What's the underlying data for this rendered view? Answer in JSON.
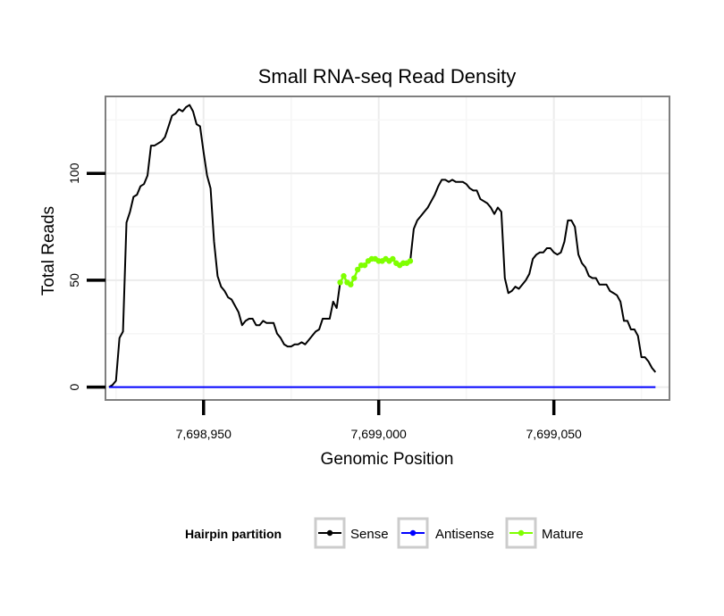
{
  "chart_data": {
    "type": "line",
    "title": "Small RNA-seq Read Density",
    "xlabel": "Genomic Position",
    "ylabel": "Total Reads",
    "xlim": [
      7698922,
      7699083
    ],
    "ylim": [
      -6,
      136
    ],
    "x_ticks": [
      7698950,
      7699000,
      7699050
    ],
    "x_tick_labels": [
      "7,698,950",
      "7,699,000",
      "7,699,050"
    ],
    "y_ticks": [
      0,
      50,
      100
    ],
    "y_tick_labels": [
      "0",
      "50",
      "100"
    ],
    "grid": true,
    "legend": {
      "title": "Hairpin partition",
      "placement": "bottom",
      "entries": [
        {
          "label": "Sense",
          "color": "#000000"
        },
        {
          "label": "Antisense",
          "color": "#0000ff"
        },
        {
          "label": "Mature",
          "color": "#7fff00"
        }
      ]
    },
    "series": [
      {
        "name": "Sense",
        "color": "#000000",
        "points": [
          [
            7698923,
            0
          ],
          [
            7698924,
            1
          ],
          [
            7698925,
            3
          ],
          [
            7698926,
            23
          ],
          [
            7698927,
            26
          ],
          [
            7698928,
            77
          ],
          [
            7698929,
            82
          ],
          [
            7698930,
            89
          ],
          [
            7698931,
            90
          ],
          [
            7698932,
            94
          ],
          [
            7698933,
            95
          ],
          [
            7698934,
            99
          ],
          [
            7698935,
            113
          ],
          [
            7698936,
            113
          ],
          [
            7698937,
            114
          ],
          [
            7698938,
            115
          ],
          [
            7698939,
            117
          ],
          [
            7698940,
            122
          ],
          [
            7698941,
            127
          ],
          [
            7698942,
            128
          ],
          [
            7698943,
            130
          ],
          [
            7698944,
            129
          ],
          [
            7698945,
            131
          ],
          [
            7698946,
            132
          ],
          [
            7698947,
            129
          ],
          [
            7698948,
            123
          ],
          [
            7698949,
            122
          ],
          [
            7698950,
            110
          ],
          [
            7698951,
            99
          ],
          [
            7698952,
            93
          ],
          [
            7698953,
            68
          ],
          [
            7698954,
            52
          ],
          [
            7698955,
            47
          ],
          [
            7698956,
            45
          ],
          [
            7698957,
            42
          ],
          [
            7698958,
            41
          ],
          [
            7698959,
            38
          ],
          [
            7698960,
            35
          ],
          [
            7698961,
            29
          ],
          [
            7698962,
            31
          ],
          [
            7698963,
            32
          ],
          [
            7698964,
            32
          ],
          [
            7698965,
            29
          ],
          [
            7698966,
            29
          ],
          [
            7698967,
            31
          ],
          [
            7698968,
            30
          ],
          [
            7698969,
            30
          ],
          [
            7698970,
            30
          ],
          [
            7698971,
            25
          ],
          [
            7698972,
            23
          ],
          [
            7698973,
            20
          ],
          [
            7698974,
            19
          ],
          [
            7698975,
            19
          ],
          [
            7698976,
            20
          ],
          [
            7698977,
            20
          ],
          [
            7698978,
            21
          ],
          [
            7698979,
            20
          ],
          [
            7698980,
            22
          ],
          [
            7698981,
            24
          ],
          [
            7698982,
            26
          ],
          [
            7698983,
            27
          ],
          [
            7698984,
            32
          ],
          [
            7698985,
            32
          ],
          [
            7698986,
            32
          ],
          [
            7698987,
            40
          ],
          [
            7698988,
            37
          ],
          [
            7698989,
            49
          ],
          [
            7699009,
            59
          ],
          [
            7699010,
            74
          ],
          [
            7699011,
            78
          ],
          [
            7699012,
            80
          ],
          [
            7699013,
            82
          ],
          [
            7699014,
            84
          ],
          [
            7699015,
            87
          ],
          [
            7699016,
            90
          ],
          [
            7699017,
            94
          ],
          [
            7699018,
            97
          ],
          [
            7699019,
            97
          ],
          [
            7699020,
            96
          ],
          [
            7699021,
            97
          ],
          [
            7699022,
            96
          ],
          [
            7699023,
            96
          ],
          [
            7699024,
            96
          ],
          [
            7699025,
            95
          ],
          [
            7699026,
            93
          ],
          [
            7699027,
            92
          ],
          [
            7699028,
            92
          ],
          [
            7699029,
            88
          ],
          [
            7699030,
            87
          ],
          [
            7699031,
            86
          ],
          [
            7699032,
            84
          ],
          [
            7699033,
            81
          ],
          [
            7699034,
            84
          ],
          [
            7699035,
            82
          ],
          [
            7699036,
            51
          ],
          [
            7699037,
            44
          ],
          [
            7699038,
            45
          ],
          [
            7699039,
            47
          ],
          [
            7699040,
            46
          ],
          [
            7699041,
            48
          ],
          [
            7699042,
            50
          ],
          [
            7699043,
            53
          ],
          [
            7699044,
            60
          ],
          [
            7699045,
            62
          ],
          [
            7699046,
            63
          ],
          [
            7699047,
            63
          ],
          [
            7699048,
            65
          ],
          [
            7699049,
            65
          ],
          [
            7699050,
            63
          ],
          [
            7699051,
            62
          ],
          [
            7699052,
            63
          ],
          [
            7699053,
            68
          ],
          [
            7699054,
            78
          ],
          [
            7699055,
            78
          ],
          [
            7699056,
            75
          ],
          [
            7699057,
            62
          ],
          [
            7699058,
            58
          ],
          [
            7699059,
            56
          ],
          [
            7699060,
            52
          ],
          [
            7699061,
            51
          ],
          [
            7699062,
            51
          ],
          [
            7699063,
            48
          ],
          [
            7699064,
            48
          ],
          [
            7699065,
            48
          ],
          [
            7699066,
            45
          ],
          [
            7699067,
            44
          ],
          [
            7699068,
            43
          ],
          [
            7699069,
            40
          ],
          [
            7699070,
            31
          ],
          [
            7699071,
            31
          ],
          [
            7699072,
            27
          ],
          [
            7699073,
            27
          ],
          [
            7699074,
            24
          ],
          [
            7699075,
            14
          ],
          [
            7699076,
            14
          ],
          [
            7699077,
            12
          ],
          [
            7699078,
            9
          ],
          [
            7699079,
            7
          ]
        ]
      },
      {
        "name": "Antisense",
        "color": "#0000ff",
        "points": [
          [
            7698923,
            0
          ],
          [
            7699079,
            0
          ]
        ]
      },
      {
        "name": "Mature",
        "color": "#7fff00",
        "points": [
          [
            7698989,
            49
          ],
          [
            7698990,
            52
          ],
          [
            7698991,
            49
          ],
          [
            7698992,
            48
          ],
          [
            7698993,
            51
          ],
          [
            7698994,
            55
          ],
          [
            7698995,
            57
          ],
          [
            7698996,
            57
          ],
          [
            7698997,
            59
          ],
          [
            7698998,
            60
          ],
          [
            7698999,
            60
          ],
          [
            7699000,
            59
          ],
          [
            7699001,
            59
          ],
          [
            7699002,
            60
          ],
          [
            7699003,
            59
          ],
          [
            7699004,
            60
          ],
          [
            7699005,
            58
          ],
          [
            7699006,
            57
          ],
          [
            7699007,
            58
          ],
          [
            7699008,
            58
          ],
          [
            7699009,
            59
          ]
        ]
      }
    ]
  }
}
